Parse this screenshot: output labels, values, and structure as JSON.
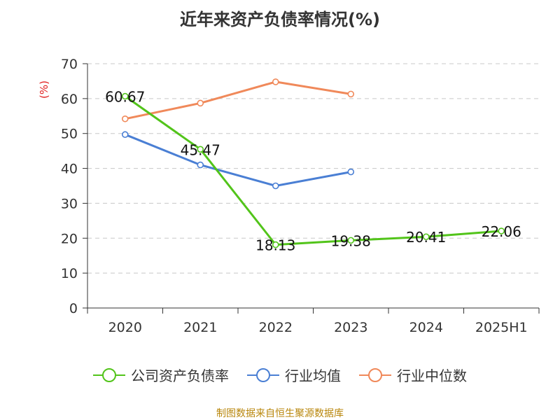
{
  "chart_data": {
    "type": "line",
    "title": "近年来资产负债率情况(%)",
    "ylabel": "(%)",
    "categories": [
      "2020",
      "2021",
      "2022",
      "2023",
      "2024",
      "2025H1"
    ],
    "ylim": [
      0,
      70
    ],
    "yticks": [
      0,
      10,
      20,
      30,
      40,
      50,
      60,
      70
    ],
    "grid": true,
    "legend_position": "bottom",
    "series": [
      {
        "name": "公司资产负债率",
        "color": "#52c41a",
        "values": [
          60.67,
          45.47,
          18.13,
          19.38,
          20.41,
          22.06
        ],
        "value_labels": [
          "60.67",
          "45.47",
          "18.13",
          "19.38",
          "20.41",
          "22.06"
        ]
      },
      {
        "name": "行业均值",
        "color": "#4a7fd4",
        "values": [
          49.7,
          41.0,
          35.0,
          39.0,
          null,
          null
        ]
      },
      {
        "name": "行业中位数",
        "color": "#f0895a",
        "values": [
          54.2,
          58.7,
          64.8,
          61.3,
          null,
          null
        ]
      }
    ]
  },
  "source": "制图数据来自恒生聚源数据库"
}
